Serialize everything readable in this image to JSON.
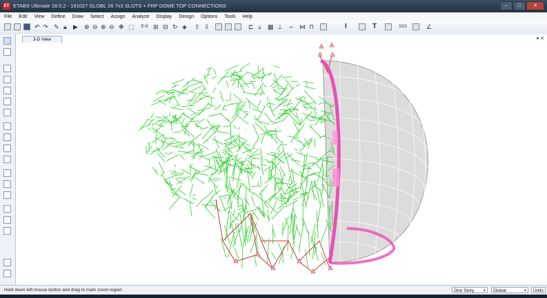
{
  "window": {
    "app_icon": "ET",
    "title": "ETABS Ultimate 18.0.2 - 191027 GLOBL 26 7x3 SLOTS + FRP DOME TOP CONNECTIONS",
    "controls": {
      "minimize": "–",
      "maximize": "□",
      "close": "✕"
    }
  },
  "menu": [
    "File",
    "Edit",
    "View",
    "Define",
    "Draw",
    "Select",
    "Assign",
    "Analyze",
    "Display",
    "Design",
    "Options",
    "Tools",
    "Help"
  ],
  "toolbar": {
    "zoom_icons": [
      "zoom-in-icon",
      "zoom-out-icon",
      "zoom-window-icon",
      "zoom-restore-icon"
    ],
    "view_label_3d": "3-d",
    "glyph_labels": [
      "I",
      "T",
      "SSS"
    ]
  },
  "view": {
    "tab_label": "3-D View",
    "close_glyph": "▾ ✕"
  },
  "statusbar": {
    "message": "Hold down left mouse button and drag to mark zoom region",
    "story_select": "One Story",
    "coord_select": "Global",
    "units_button": "Units"
  },
  "colors": {
    "frame_green": "#3ed13e",
    "brace_red": "#c23a3a",
    "dome_ring_pink": "#ea4fb7",
    "dome_fill": "#dcdcdc"
  }
}
